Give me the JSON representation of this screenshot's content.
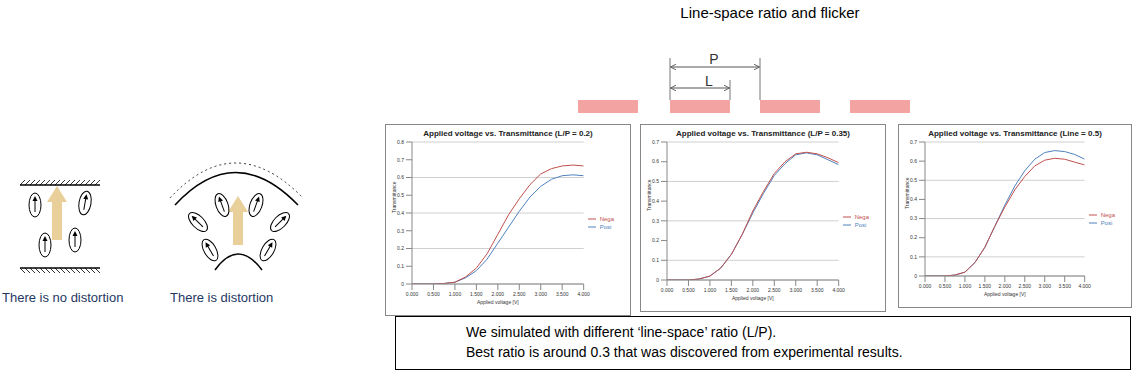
{
  "title": "Line-space ratio and flicker",
  "diagram": {
    "dimensions": [
      "P",
      "L"
    ],
    "captions": [
      "There is no distortion",
      "There is distortion"
    ]
  },
  "note": [
    "We simulated with different ‘line-space’ ratio (L/P).",
    "Best ratio is around 0.3 that was discovered from experimental results."
  ],
  "chart_data": [
    {
      "type": "line",
      "title": "Applied voltage vs. Transmittance (L/P = 0.2)",
      "x_label": "Applied voltage [V]",
      "y_label": "Transmittance",
      "x": [
        0,
        0.25,
        0.5,
        0.75,
        1,
        1.25,
        1.5,
        1.75,
        2,
        2.25,
        2.5,
        2.75,
        3,
        3.25,
        3.5,
        3.75,
        4
      ],
      "series": [
        {
          "name": "Posi",
          "color": "#4f81bd",
          "values": [
            0,
            0,
            0,
            0.003,
            0.01,
            0.035,
            0.075,
            0.14,
            0.23,
            0.32,
            0.41,
            0.49,
            0.55,
            0.59,
            0.61,
            0.615,
            0.61
          ]
        },
        {
          "name": "Nega",
          "color": "#c0504d",
          "values": [
            0,
            0,
            0,
            0.003,
            0.01,
            0.04,
            0.09,
            0.17,
            0.28,
            0.39,
            0.48,
            0.56,
            0.62,
            0.65,
            0.665,
            0.67,
            0.665
          ]
        }
      ],
      "xlim": [
        0,
        4
      ],
      "ylim": [
        0,
        0.8
      ],
      "xticks": [
        {
          "value": 0,
          "label": "0.000"
        },
        {
          "value": 0.5,
          "label": "0.500"
        },
        {
          "value": 1,
          "label": "1.000"
        },
        {
          "value": 1.5,
          "label": "1.500"
        },
        {
          "value": 2,
          "label": "2.000"
        },
        {
          "value": 2.5,
          "label": "2.500"
        },
        {
          "value": 3,
          "label": "3.000"
        },
        {
          "value": 3.5,
          "label": "3.500"
        },
        {
          "value": 4,
          "label": "4.000"
        }
      ],
      "yticks": [
        0,
        0.1,
        0.2,
        0.3,
        0.4,
        0.5,
        0.6,
        0.7,
        0.8
      ],
      "grid": true,
      "legend": "right"
    },
    {
      "type": "line",
      "title": "Applied voltage vs. Transmittance (L/P = 0.35)",
      "x_label": "Applied voltage [V]",
      "y_label": "Transmittance",
      "x": [
        0,
        0.25,
        0.5,
        0.75,
        1,
        1.25,
        1.5,
        1.75,
        2,
        2.25,
        2.5,
        2.75,
        3,
        3.25,
        3.5,
        3.75,
        4
      ],
      "series": [
        {
          "name": "Posi",
          "color": "#4f81bd",
          "values": [
            0,
            0,
            0,
            0.005,
            0.02,
            0.06,
            0.13,
            0.23,
            0.34,
            0.44,
            0.53,
            0.59,
            0.635,
            0.645,
            0.635,
            0.61,
            0.585
          ]
        },
        {
          "name": "Nega",
          "color": "#c0504d",
          "values": [
            0,
            0,
            0,
            0.005,
            0.02,
            0.06,
            0.13,
            0.23,
            0.35,
            0.45,
            0.54,
            0.6,
            0.64,
            0.648,
            0.64,
            0.62,
            0.595
          ]
        }
      ],
      "xlim": [
        0,
        4
      ],
      "ylim": [
        0,
        0.7
      ],
      "xticks": [
        {
          "value": 0,
          "label": "0.000"
        },
        {
          "value": 0.5,
          "label": "0.500"
        },
        {
          "value": 1,
          "label": "1.000"
        },
        {
          "value": 1.5,
          "label": "1.500"
        },
        {
          "value": 2,
          "label": "2.000"
        },
        {
          "value": 2.5,
          "label": "2.500"
        },
        {
          "value": 3,
          "label": "3.000"
        },
        {
          "value": 3.5,
          "label": "3.500"
        },
        {
          "value": 4,
          "label": "4.000"
        }
      ],
      "yticks": [
        0,
        0.1,
        0.2,
        0.3,
        0.4,
        0.5,
        0.6,
        0.7
      ],
      "grid": true,
      "legend": "right"
    },
    {
      "type": "line",
      "title": "Applied voltage vs. Transmittance (Line = 0.5)",
      "x_label": "Applied voltage [V]",
      "y_label": "Transmittance",
      "x": [
        0,
        0.25,
        0.5,
        0.75,
        1,
        1.25,
        1.5,
        1.75,
        2,
        2.25,
        2.5,
        2.75,
        3,
        3.25,
        3.5,
        3.75,
        4
      ],
      "series": [
        {
          "name": "Posi",
          "color": "#4f81bd",
          "values": [
            0,
            0,
            0,
            0.005,
            0.02,
            0.07,
            0.15,
            0.26,
            0.37,
            0.47,
            0.55,
            0.61,
            0.645,
            0.655,
            0.65,
            0.635,
            0.61
          ]
        },
        {
          "name": "Nega",
          "color": "#c0504d",
          "values": [
            0,
            0,
            0,
            0.005,
            0.02,
            0.07,
            0.15,
            0.26,
            0.36,
            0.45,
            0.52,
            0.575,
            0.605,
            0.615,
            0.61,
            0.595,
            0.58
          ]
        }
      ],
      "xlim": [
        0,
        4
      ],
      "ylim": [
        0,
        0.7
      ],
      "xticks": [
        {
          "value": 0,
          "label": "0.000"
        },
        {
          "value": 0.5,
          "label": "0.500"
        },
        {
          "value": 1,
          "label": "1.000"
        },
        {
          "value": 1.5,
          "label": "1.500"
        },
        {
          "value": 2,
          "label": "2.000"
        },
        {
          "value": 2.5,
          "label": "2.500"
        },
        {
          "value": 3,
          "label": "3.000"
        },
        {
          "value": 3.5,
          "label": "3.500"
        },
        {
          "value": 4,
          "label": "4.000"
        }
      ],
      "yticks": [
        0,
        0.1,
        0.2,
        0.3,
        0.4,
        0.5,
        0.6,
        0.7
      ],
      "grid": true,
      "legend": "right"
    }
  ]
}
